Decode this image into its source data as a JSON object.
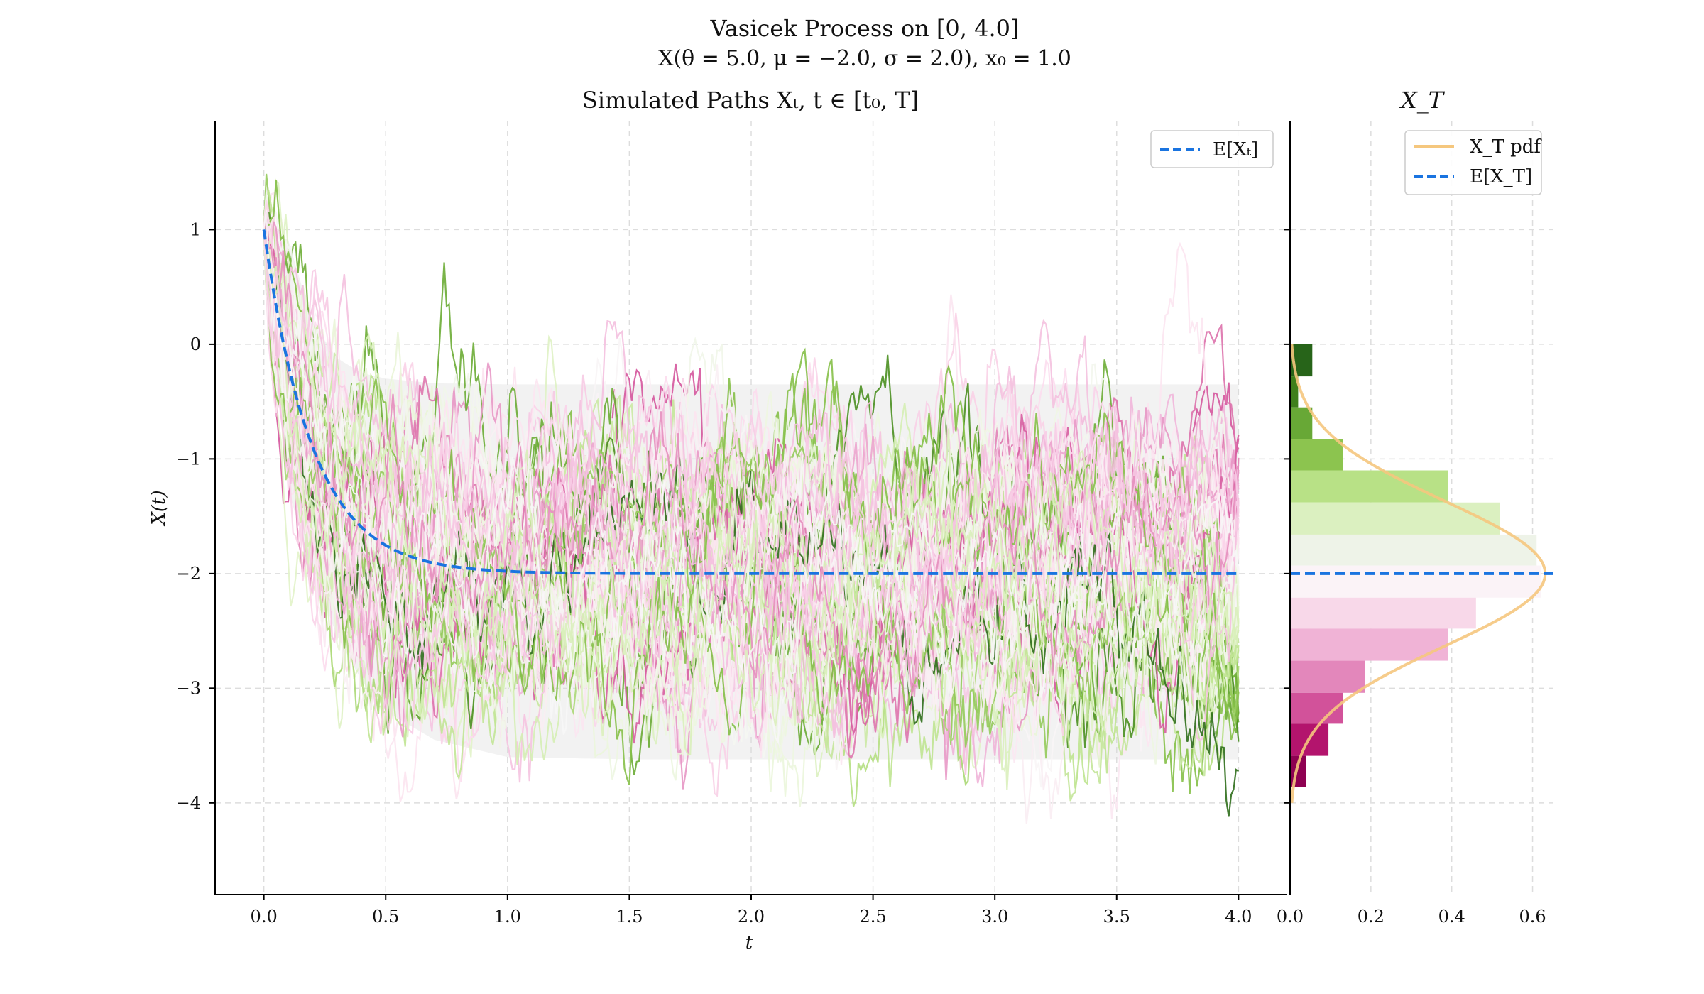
{
  "figure": {
    "title": "Vasicek Process on [0, 4.0]",
    "subtitle": "X(θ = 5.0, μ = −2.0, σ = 2.0), x₀ = 1.0"
  },
  "chart_data": [
    {
      "id": "paths",
      "type": "line",
      "title": "Simulated Paths Xₜ, t ∈ [t₀, T]",
      "xlabel": "t",
      "ylabel": "X(t)",
      "xlim": [
        -0.2,
        4.2
      ],
      "ylim": [
        -4.8,
        1.95
      ],
      "xticks": [
        0,
        0.5,
        1,
        1.5,
        2,
        2.5,
        3,
        3.5,
        4
      ],
      "xtick_labels": [
        "0.0",
        "0.5",
        "1.0",
        "1.5",
        "2.0",
        "2.5",
        "3.0",
        "3.5",
        "4.0"
      ],
      "yticks": [
        1,
        0,
        -1,
        -2,
        -3,
        -4
      ],
      "ytick_labels": [
        "1",
        "0",
        "−1",
        "−2",
        "−3",
        "−4"
      ],
      "grid": true,
      "legend": {
        "placement": "top-right",
        "entries": [
          "E[Xₜ]"
        ]
      },
      "process": {
        "theta": 5.0,
        "mu": -2.0,
        "sigma": 2.0,
        "x0": 1.0,
        "T": 4.0
      },
      "n_paths": 100,
      "expectation": {
        "name": "E[Xₜ]",
        "color": "#1a74e0",
        "t": [
          0,
          0.1,
          0.2,
          0.3,
          0.4,
          0.5,
          0.6,
          0.8,
          1.0,
          1.5,
          2.0,
          3.0,
          4.0
        ],
        "values": [
          1.0,
          -0.18,
          -0.9,
          -1.33,
          -1.59,
          -1.75,
          -1.85,
          -1.95,
          -1.98,
          -2.0,
          -2.0,
          -2.0,
          -2.0
        ]
      },
      "confidence_band": {
        "t": [
          0,
          0.1,
          0.2,
          0.3,
          0.4,
          0.5,
          0.7,
          1.0,
          1.5,
          2.0,
          3.0,
          4.0
        ],
        "upper": [
          1.0,
          0.91,
          0.19,
          -0.12,
          -0.25,
          -0.3,
          -0.34,
          -0.35,
          -0.35,
          -0.35,
          -0.35,
          -0.35
        ],
        "lower": [
          1.0,
          -1.27,
          -1.99,
          -2.54,
          -2.93,
          -3.2,
          -3.45,
          -3.6,
          -3.62,
          -3.62,
          -3.62,
          -3.62
        ]
      },
      "path_colormap": [
        "#8e0152",
        "#c51b7d",
        "#de77ae",
        "#f1b6da",
        "#fde0ef",
        "#f7f7f7",
        "#e6f5d0",
        "#b8e186",
        "#7fbc41",
        "#4d9221",
        "#276419"
      ]
    },
    {
      "id": "terminal",
      "type": "bar",
      "orientation": "horizontal",
      "title": "X_T",
      "xlim": [
        0,
        0.65
      ],
      "ylim": [
        -4.8,
        1.95
      ],
      "xticks": [
        0,
        0.2,
        0.4,
        0.6
      ],
      "xtick_labels": [
        "0.0",
        "0.2",
        "0.4",
        "0.6"
      ],
      "grid": true,
      "legend": {
        "placement": "top-right",
        "entries": [
          "X_T pdf",
          "E[X_T]"
        ]
      },
      "bins": [
        {
          "y0": -0.28,
          "y1": 0.0,
          "density": 0.055,
          "color": "#276419"
        },
        {
          "y0": -0.55,
          "y1": -0.28,
          "density": 0.02,
          "color": "#3f7f1b"
        },
        {
          "y0": -0.83,
          "y1": -0.55,
          "density": 0.055,
          "color": "#68a836"
        },
        {
          "y0": -1.1,
          "y1": -0.83,
          "density": 0.13,
          "color": "#8cc44f"
        },
        {
          "y0": -1.38,
          "y1": -1.1,
          "density": 0.39,
          "color": "#b8e186"
        },
        {
          "y0": -1.66,
          "y1": -1.38,
          "density": 0.52,
          "color": "#dbf0c0"
        },
        {
          "y0": -1.93,
          "y1": -1.66,
          "density": 0.61,
          "color": "#eef3e8"
        },
        {
          "y0": -2.21,
          "y1": -1.93,
          "density": 0.62,
          "color": "#fbf3f7"
        },
        {
          "y0": -2.48,
          "y1": -2.21,
          "density": 0.46,
          "color": "#f8d8e9"
        },
        {
          "y0": -2.76,
          "y1": -2.48,
          "density": 0.39,
          "color": "#f0b3d6"
        },
        {
          "y0": -3.04,
          "y1": -2.76,
          "density": 0.185,
          "color": "#e387bb"
        },
        {
          "y0": -3.31,
          "y1": -3.04,
          "density": 0.13,
          "color": "#d2529a"
        },
        {
          "y0": -3.59,
          "y1": -3.31,
          "density": 0.095,
          "color": "#b3146d"
        },
        {
          "y0": -3.86,
          "y1": -3.59,
          "density": 0.04,
          "color": "#8e0152"
        }
      ],
      "pdf": {
        "name": "X_T pdf",
        "mean": -2.0,
        "std": 0.632,
        "color": "#f5c77e"
      },
      "expectation": {
        "name": "E[X_T]",
        "value": -2.0,
        "color": "#1a74e0"
      }
    }
  ]
}
